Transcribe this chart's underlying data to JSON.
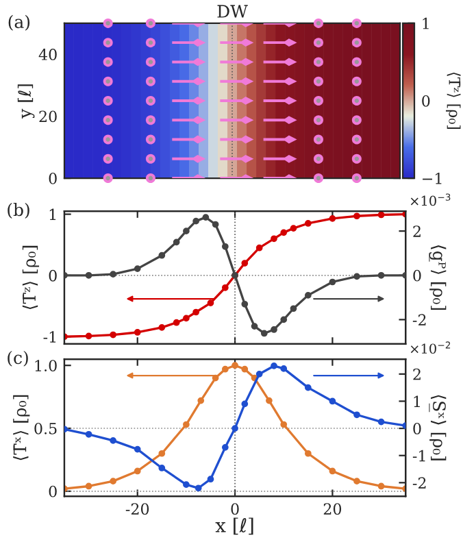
{
  "chart_data": [
    {
      "type": "heatmap",
      "title": "DW",
      "ylabel": "y [ℓ]",
      "clabel": "⟨T̄ᶻ⟩ [ρ₀]",
      "annotations": [
        "(a)"
      ],
      "categories": [
        null,
        null,
        null,
        null,
        null,
        null,
        null,
        null,
        null,
        null,
        null,
        null,
        null,
        null,
        null,
        null,
        null,
        null,
        null,
        null,
        null,
        null,
        null,
        null,
        null,
        null,
        null,
        null,
        null,
        null,
        null,
        null,
        null,
        null,
        null
      ],
      "cells": [
        [
          -1,
          -1,
          -0.99,
          -0.99,
          -0.98,
          -0.97,
          -0.95,
          -0.92,
          -0.89,
          -0.84,
          -0.78,
          -0.71,
          -0.62,
          -0.52,
          -0.4,
          -0.27,
          -0.14,
          0,
          0.14,
          0.27,
          0.4,
          0.52,
          0.62,
          0.71,
          0.78,
          0.84,
          0.89,
          0.92,
          0.95,
          0.97,
          0.98,
          0.99,
          0.99,
          1,
          1
        ]
      ],
      "clim": [
        -1,
        1
      ],
      "cticks": [
        -1,
        0,
        1
      ],
      "ylim": [
        0,
        50
      ],
      "yticks": [
        0,
        20,
        40
      ]
    },
    {
      "type": "line",
      "y2label": "⟨g̲ᴾ⟩ [ρ₀]",
      "ylabel": "⟨T̄ᶻ⟩ [ρ₀]",
      "annotations": [
        "(b)",
        "×10$^{−3}$"
      ],
      "marker": "circle",
      "tick_labels": "y",
      "xlim": [
        -35,
        35
      ],
      "xticks": [
        -20,
        0,
        20
      ],
      "ylim": [
        -1.12,
        1.05
      ],
      "yticks": [
        -1,
        0,
        1
      ],
      "y2lim": [
        -3.1,
        2.9
      ],
      "y2ticks": [
        -2,
        0,
        2
      ],
      "series": [
        {
          "color": "#d40000",
          "x": [
            -35,
            -30,
            -25,
            -20,
            -15,
            -12,
            -10,
            -8,
            -5,
            -2,
            0,
            2,
            5,
            8,
            10,
            12,
            15,
            20,
            25,
            30,
            35
          ],
          "values": [
            -1,
            -0.99,
            -0.97,
            -0.93,
            -0.85,
            -0.77,
            -0.7,
            -0.6,
            -0.45,
            -0.2,
            0,
            0.2,
            0.45,
            0.6,
            0.7,
            0.77,
            0.85,
            0.93,
            0.97,
            0.99,
            1
          ]
        },
        {
          "color": "#444444",
          "axis": "y2",
          "x": [
            -35,
            -30,
            -25,
            -20,
            -15,
            -12,
            -10,
            -8,
            -6,
            -4,
            -2,
            0,
            2,
            4,
            6,
            8,
            10,
            12,
            15,
            20,
            25,
            30,
            35
          ],
          "values": [
            0,
            0,
            0.05,
            0.3,
            0.9,
            1.5,
            2.0,
            2.45,
            2.62,
            2.3,
            1.3,
            0,
            -1.3,
            -2.3,
            -2.62,
            -2.45,
            -2.0,
            -1.5,
            -0.9,
            -0.3,
            -0.05,
            0,
            0
          ]
        }
      ],
      "ref_lines": [
        {
          "axis": "x",
          "value": 0,
          "label": null,
          "color": "#555555",
          "line_style": "dotted"
        },
        {
          "axis": "y",
          "value": 0,
          "label": null,
          "color": "#888888",
          "line_style": "dotted"
        }
      ]
    },
    {
      "type": "line",
      "xlabel": "x [ℓ]",
      "ylabel": "⟨T̄ˣ⟩ [ρ₀]",
      "y2label": "⟨S̲ˣ⟩ [ρ₀]",
      "annotations": [
        "(c)",
        "×10$^{−2}$"
      ],
      "marker": "circle",
      "xlim": [
        -35,
        35
      ],
      "xticks": [
        -20,
        0,
        20
      ],
      "ylim": [
        -0.04,
        1.05
      ],
      "yticks": [
        0,
        0.5,
        {
          "value": 1.0,
          "label": "1.0"
        }
      ],
      "y2lim": [
        -2.5,
        2.55
      ],
      "y2ticks": [
        -2,
        -1,
        0,
        1,
        2
      ],
      "series": [
        {
          "color": "#e07a30",
          "x": [
            -35,
            -30,
            -25,
            -20,
            -15,
            -10,
            -7,
            -4,
            -2,
            0,
            2,
            4,
            7,
            10,
            15,
            20,
            25,
            30,
            35
          ],
          "values": [
            0.02,
            0.04,
            0.08,
            0.16,
            0.3,
            0.53,
            0.72,
            0.9,
            0.97,
            1.0,
            0.97,
            0.9,
            0.72,
            0.53,
            0.3,
            0.16,
            0.08,
            0.04,
            0.02
          ]
        },
        {
          "color": "#1f4fd0",
          "axis": "y2",
          "x": [
            -35,
            -30,
            -25,
            -20,
            -15,
            -10,
            -7.5,
            -5,
            -2,
            0,
            2,
            5,
            8,
            10,
            15,
            20,
            25,
            30,
            35
          ],
          "values": [
            -0.03,
            -0.22,
            -0.45,
            -0.77,
            -1.46,
            -2.07,
            -2.2,
            -1.87,
            -0.7,
            0,
            0.9,
            2.0,
            2.3,
            2.2,
            1.5,
            1.0,
            0.5,
            0.24,
            0.1
          ]
        }
      ],
      "ref_lines": [
        {
          "axis": "x",
          "value": 0,
          "label": null,
          "color": "#555555",
          "line_style": "dotted"
        },
        {
          "axis": "y",
          "value": 0.5,
          "label": null,
          "color": "#888888",
          "line_style": "dotted"
        },
        {
          "axis": "y",
          "value": 0,
          "label": null,
          "color": "#888888",
          "line_style": "dotted"
        }
      ]
    }
  ]
}
